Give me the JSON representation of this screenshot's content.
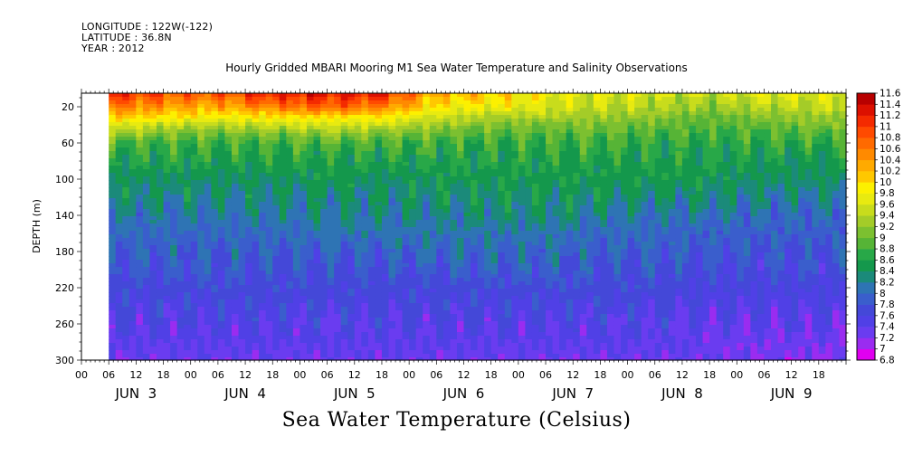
{
  "header": {
    "longitude": "LONGITUDE : 122W(-122)",
    "latitude": "LATITUDE : 36.8N",
    "year": "YEAR : 2012"
  },
  "footer_title": "Sea Water Temperature (Celsius)",
  "chart_data": {
    "type": "heatmap",
    "title": "Hourly Gridded MBARI Mooring M1 Sea Water Temperature and Salinity Observations",
    "xlabel": "",
    "ylabel": "DEPTH (m)",
    "colorbar_label": "Sea Water Temperature (Celsius)",
    "hour_ticks": [
      "00",
      "06",
      "12",
      "18",
      "00",
      "06",
      "12",
      "18",
      "00",
      "06",
      "12",
      "18",
      "00",
      "06",
      "12",
      "18",
      "00",
      "06",
      "12",
      "18",
      "00",
      "06",
      "12",
      "18",
      "00",
      "06",
      "12",
      "18"
    ],
    "day_labels": [
      "JUN  3",
      "JUN  4",
      "JUN  5",
      "JUN  6",
      "JUN  7",
      "JUN  8",
      "JUN  9"
    ],
    "x_range_hours": [
      0,
      168
    ],
    "data_start_hour": 6,
    "y_ticks": [
      20,
      60,
      100,
      140,
      180,
      220,
      260,
      300
    ],
    "ylim": [
      300,
      5
    ],
    "colorbar_levels": [
      "6.8",
      "7",
      "7.2",
      "7.4",
      "7.6",
      "7.8",
      "8",
      "8.2",
      "8.4",
      "8.6",
      "8.8",
      "9",
      "9.2",
      "9.4",
      "9.6",
      "9.8",
      "10",
      "10.2",
      "10.4",
      "10.6",
      "10.8",
      "11",
      "11.2",
      "11.4",
      "11.6"
    ],
    "colorbar_colors": [
      "#e000f0",
      "#9a2cf0",
      "#6a3cf0",
      "#5040e6",
      "#4448d8",
      "#3a5ecc",
      "#2e74b4",
      "#1b8a7a",
      "#14984c",
      "#28a848",
      "#56b436",
      "#7cc030",
      "#a4cc28",
      "#c8dc1c",
      "#e8ea10",
      "#fcf000",
      "#ffc800",
      "#ffaa00",
      "#ff8a00",
      "#ff6a00",
      "#ff4a00",
      "#f42a00",
      "#dc1000",
      "#b80000"
    ],
    "profile": {
      "depths": [
        5,
        10,
        20,
        30,
        40,
        50,
        60,
        70,
        80,
        100,
        120,
        140,
        160,
        180,
        200,
        220,
        240,
        260,
        280,
        300
      ],
      "times": [
        6,
        18,
        30,
        42,
        54,
        66,
        78,
        90,
        102,
        114,
        126,
        138,
        150,
        162,
        168
      ],
      "temps": [
        [
          11.2,
          11.0,
          10.6,
          10.2,
          9.7,
          9.3,
          8.9,
          8.7,
          8.6,
          8.4,
          8.3,
          8.1,
          8.0,
          7.9,
          7.8,
          7.7,
          7.6,
          7.5,
          7.4,
          7.3
        ],
        [
          10.9,
          10.7,
          10.4,
          10.0,
          9.5,
          9.1,
          8.8,
          8.7,
          8.6,
          8.4,
          8.3,
          8.1,
          8.0,
          7.9,
          7.8,
          7.7,
          7.6,
          7.5,
          7.4,
          7.3
        ],
        [
          10.8,
          10.6,
          10.3,
          9.9,
          9.4,
          9.0,
          8.8,
          8.7,
          8.6,
          8.4,
          8.3,
          8.1,
          8.0,
          7.9,
          7.8,
          7.7,
          7.6,
          7.5,
          7.4,
          7.3
        ],
        [
          11.2,
          11.0,
          10.6,
          10.0,
          9.5,
          9.1,
          8.8,
          8.7,
          8.6,
          8.4,
          8.3,
          8.2,
          8.0,
          7.9,
          7.8,
          7.7,
          7.6,
          7.5,
          7.4,
          7.3
        ],
        [
          11.3,
          11.1,
          10.8,
          10.1,
          9.6,
          9.2,
          8.9,
          8.7,
          8.6,
          8.5,
          8.3,
          8.2,
          8.1,
          7.9,
          7.8,
          7.7,
          7.6,
          7.5,
          7.4,
          7.3
        ],
        [
          11.2,
          11.0,
          10.6,
          10.0,
          9.5,
          9.1,
          8.8,
          8.7,
          8.6,
          8.4,
          8.3,
          8.2,
          8.1,
          7.9,
          7.8,
          7.7,
          7.6,
          7.5,
          7.4,
          7.3
        ],
        [
          10.2,
          10.1,
          9.9,
          9.6,
          9.3,
          9.0,
          8.8,
          8.7,
          8.6,
          8.5,
          8.4,
          8.2,
          8.1,
          8.0,
          7.8,
          7.7,
          7.6,
          7.5,
          7.4,
          7.3
        ],
        [
          10.1,
          10.0,
          9.8,
          9.4,
          9.1,
          8.9,
          8.7,
          8.6,
          8.6,
          8.5,
          8.4,
          8.3,
          8.1,
          8.0,
          7.9,
          7.7,
          7.6,
          7.5,
          7.4,
          7.3
        ],
        [
          9.8,
          9.7,
          9.6,
          9.4,
          9.1,
          8.9,
          8.8,
          8.7,
          8.6,
          8.5,
          8.4,
          8.3,
          8.1,
          8.0,
          7.9,
          7.7,
          7.6,
          7.5,
          7.4,
          7.3
        ],
        [
          9.6,
          9.6,
          9.5,
          9.3,
          9.1,
          8.9,
          8.8,
          8.7,
          8.6,
          8.5,
          8.4,
          8.2,
          8.0,
          7.9,
          7.8,
          7.7,
          7.6,
          7.5,
          7.4,
          7.3
        ],
        [
          9.6,
          9.5,
          9.4,
          9.2,
          9.0,
          8.8,
          8.7,
          8.6,
          8.6,
          8.5,
          8.3,
          8.1,
          8.0,
          7.9,
          7.8,
          7.7,
          7.6,
          7.5,
          7.4,
          7.3
        ],
        [
          9.5,
          9.4,
          9.2,
          9.0,
          8.9,
          8.8,
          8.7,
          8.6,
          8.6,
          8.5,
          8.3,
          8.1,
          7.9,
          7.8,
          7.7,
          7.6,
          7.5,
          7.4,
          7.3,
          7.3
        ],
        [
          9.7,
          9.6,
          9.4,
          9.2,
          9.0,
          8.8,
          8.7,
          8.6,
          8.5,
          8.4,
          8.2,
          8.0,
          7.9,
          7.8,
          7.7,
          7.6,
          7.5,
          7.4,
          7.3,
          7.2
        ],
        [
          9.7,
          9.6,
          9.5,
          9.3,
          9.1,
          8.9,
          8.7,
          8.6,
          8.5,
          8.4,
          8.2,
          8.0,
          7.9,
          7.8,
          7.7,
          7.6,
          7.5,
          7.4,
          7.3,
          7.2
        ],
        [
          9.7,
          9.6,
          9.5,
          9.3,
          9.1,
          8.9,
          8.7,
          8.6,
          8.5,
          8.4,
          8.2,
          8.0,
          7.9,
          7.8,
          7.7,
          7.6,
          7.5,
          7.4,
          7.3,
          7.2
        ]
      ]
    }
  }
}
